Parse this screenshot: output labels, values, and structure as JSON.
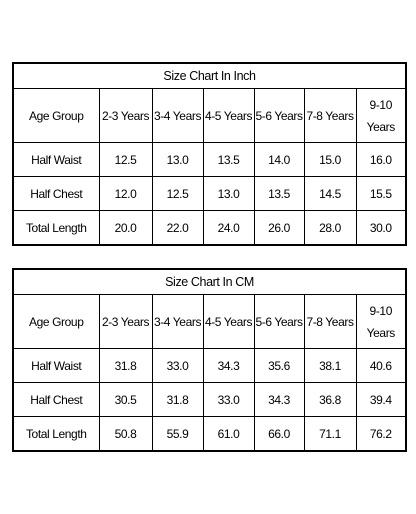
{
  "tables": [
    {
      "title": "Size Chart In Inch",
      "header": [
        "Age Group",
        "2-3 Years",
        "3-4 Years",
        "4-5 Years",
        "5-6 Years",
        "7-8 Years",
        "9-10 Years"
      ],
      "rows": [
        [
          "Half Waist",
          "12.5",
          "13.0",
          "13.5",
          "14.0",
          "15.0",
          "16.0"
        ],
        [
          "Half Chest",
          "12.0",
          "12.5",
          "13.0",
          "13.5",
          "14.5",
          "15.5"
        ],
        [
          "Total Length",
          "20.0",
          "22.0",
          "24.0",
          "26.0",
          "28.0",
          "30.0"
        ]
      ]
    },
    {
      "title": "Size Chart In CM",
      "header": [
        "Age Group",
        "2-3 Years",
        "3-4 Years",
        "4-5 Years",
        "5-6 Years",
        "7-8 Years",
        "9-10 Years"
      ],
      "rows": [
        [
          "Half Waist",
          "31.8",
          "33.0",
          "34.3",
          "35.6",
          "38.1",
          "40.6"
        ],
        [
          "Half Chest",
          "30.5",
          "31.8",
          "33.0",
          "34.3",
          "36.8",
          "39.4"
        ],
        [
          "Total Length",
          "50.8",
          "55.9",
          "61.0",
          "66.0",
          "71.1",
          "76.2"
        ]
      ]
    }
  ]
}
